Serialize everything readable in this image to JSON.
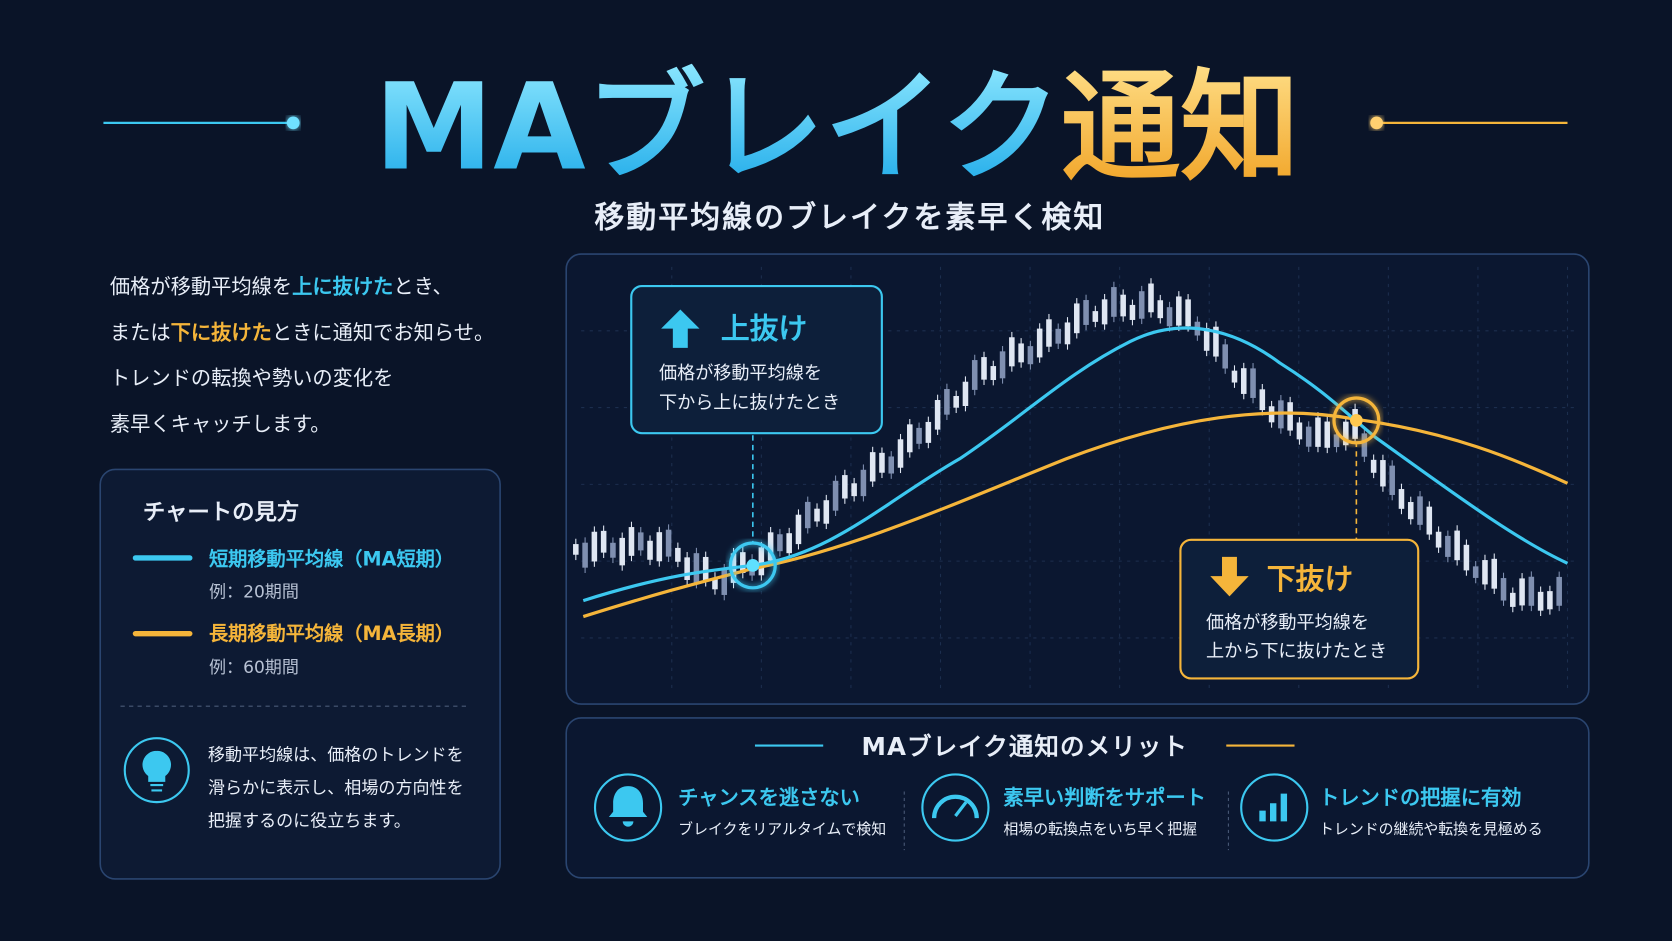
{
  "header": {
    "title_main": "MAブレイク",
    "title_accent": "通知",
    "subtitle": "移動平均線のブレイクを素早く検知"
  },
  "intro": {
    "lines": [
      [
        "価格が移動平均線を",
        "上に抜けた",
        "とき、"
      ],
      [
        "または",
        "下に抜けた",
        "ときに通知でお知らせ。"
      ],
      [
        "トレンドの転換や勢いの変化を"
      ],
      [
        "素早くキャッチします。"
      ]
    ]
  },
  "legend": {
    "title": "チャートの見方",
    "items": [
      {
        "label": "短期移動平均線（MA短期）",
        "example": "例：20期間"
      },
      {
        "label": "長期移動平均線（MA長期）",
        "example": "例：60期間"
      }
    ],
    "note": [
      "移動平均線は、価格のトレンドを",
      "滑らかに表示し、相場の方向性を",
      "把握するのに役立ちます。"
    ]
  },
  "chart": {
    "callouts": [
      {
        "title": "上抜け",
        "lines": [
          "価格が移動平均線を",
          "下から上に抜けたとき"
        ]
      },
      {
        "title": "下抜け",
        "lines": [
          "価格が移動平均線を",
          "上から下に抜けたとき"
        ]
      }
    ]
  },
  "merits": {
    "title": "MAブレイク通知のメリット",
    "items": [
      {
        "title": "チャンスを逃さない",
        "desc": "ブレイクをリアルタイムで検知"
      },
      {
        "title": "素早い判断をサポート",
        "desc": "相場の転換点をいち早く把握"
      },
      {
        "title": "トレンドの把握に有効",
        "desc": "トレンドの継続や転換を見極める"
      }
    ]
  }
}
